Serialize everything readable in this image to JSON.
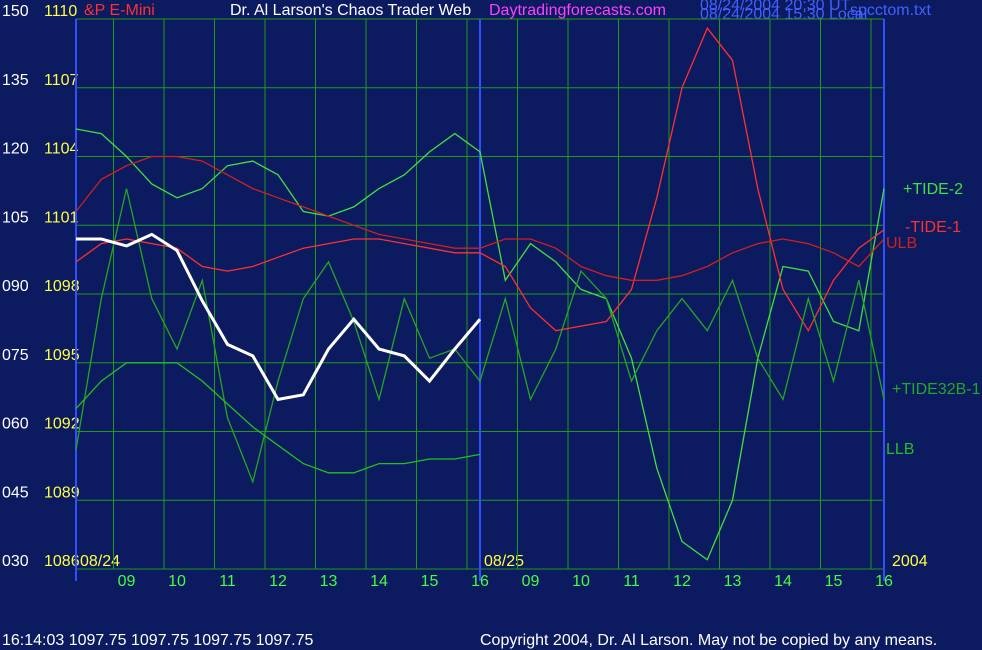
{
  "chart_data": {
    "type": "line",
    "instrument": "&P E-Mini",
    "title": "Dr. Al Larson's Chaos Trader Web",
    "website": "Daytradingforecasts.com",
    "timestamps": [
      "08/24/2004 20:30 UT",
      "08/24/2004 15:30 Local"
    ],
    "filename": "spcctom.txt",
    "status": "16:14:03  1097.75 1097.75 1097.75 1097.75",
    "copyright": "Copyright 2004, Dr. Al Larson. May not be copied by any means.",
    "annotations": [
      "08/24",
      "08/25",
      "2004"
    ],
    "x": [
      8,
      8.5,
      9,
      9.5,
      10,
      10.5,
      11,
      11.5,
      12,
      12.5,
      13,
      13.5,
      14,
      14.5,
      15,
      15.5,
      16,
      16.5,
      17,
      17.5,
      18,
      18.5,
      19,
      19.5,
      20,
      20.5,
      21,
      21.5,
      22,
      22.5,
      23,
      23.5,
      24
    ],
    "xlim": [
      8,
      24
    ],
    "xticks": [
      {
        "value": 9,
        "label": "09"
      },
      10,
      11,
      12,
      13,
      14,
      15,
      16,
      {
        "value": 17,
        "label": "09"
      },
      {
        "value": 18,
        "label": "10"
      },
      {
        "value": 19,
        "label": "11"
      },
      {
        "value": 20,
        "label": "12"
      },
      {
        "value": 21,
        "label": "13"
      },
      {
        "value": 22,
        "label": "14"
      },
      {
        "value": 23,
        "label": "15"
      },
      {
        "value": 24,
        "label": "16"
      }
    ],
    "ylim": [
      30,
      150
    ],
    "yticks": [
      {
        "value": 30,
        "label": "030"
      },
      {
        "value": 45,
        "label": "045"
      },
      {
        "value": 60,
        "label": "060"
      },
      {
        "value": 75,
        "label": "075"
      },
      {
        "value": 90,
        "label": "090"
      },
      105,
      120,
      135,
      150
    ],
    "y2lim": [
      1086,
      1110
    ],
    "y2ticks": [
      1086,
      1089,
      1092,
      1095,
      1098,
      1101,
      1104,
      1107,
      1110
    ],
    "grid": true,
    "series": [
      {
        "name": "+TIDE-2",
        "color": "#40e040",
        "values": [
          126,
          125,
          120,
          114,
          111,
          113,
          118,
          119,
          116,
          108,
          107,
          109,
          113,
          116,
          121,
          125,
          121,
          93,
          101,
          97,
          91,
          89,
          76,
          52,
          36,
          32,
          45,
          76,
          96,
          95,
          84,
          82,
          113
        ]
      },
      {
        "name": "-TIDE-1",
        "color": "#ff3030",
        "values": [
          97,
          101,
          102,
          101,
          100,
          96,
          95,
          96,
          98,
          100,
          101,
          102,
          102,
          101,
          100,
          99,
          99,
          96,
          87,
          82,
          83,
          84,
          91,
          111,
          135,
          148,
          141,
          113,
          91,
          82,
          93,
          100,
          104
        ]
      },
      {
        "name": "ULB",
        "color": "#d02020",
        "values": [
          108,
          115,
          118,
          120,
          120,
          119,
          116,
          113,
          111,
          109,
          107,
          105,
          103,
          102,
          101,
          100,
          100,
          102,
          102,
          100,
          96,
          94,
          93,
          93,
          94,
          96,
          99,
          101,
          102,
          101,
          99,
          96,
          102
        ]
      },
      {
        "name": "+TIDE32B-1",
        "color": "#22a822",
        "values": [
          56,
          89,
          113,
          89,
          78,
          93,
          63,
          49,
          71,
          89,
          97,
          84,
          67,
          89,
          76,
          78,
          71,
          89,
          67,
          78,
          95,
          89,
          71,
          82,
          89,
          82,
          93,
          76,
          67,
          89,
          71,
          93,
          67
        ]
      },
      {
        "name": "LLB",
        "color": "#20c020",
        "values": [
          65,
          71,
          75,
          75,
          75,
          71,
          66,
          61,
          57,
          53,
          51,
          51,
          53,
          53,
          54,
          54,
          55,
          null,
          null,
          null,
          null,
          null,
          null,
          null,
          null,
          null,
          null,
          null,
          null,
          null,
          null,
          null,
          null
        ]
      },
      {
        "color": "#ffffff",
        "axis": "y2",
        "values": [
          1100.4,
          1100.4,
          1100.1,
          1100.6,
          1099.9,
          1097.7,
          1095.8,
          1095.3,
          1093.4,
          1093.6,
          1095.6,
          1096.9,
          1095.6,
          1095.3,
          1094.2,
          1095.6,
          1096.9,
          null,
          null,
          null,
          null,
          null,
          null,
          null,
          null,
          null,
          null,
          null,
          null,
          null,
          null,
          null,
          null
        ]
      }
    ]
  }
}
